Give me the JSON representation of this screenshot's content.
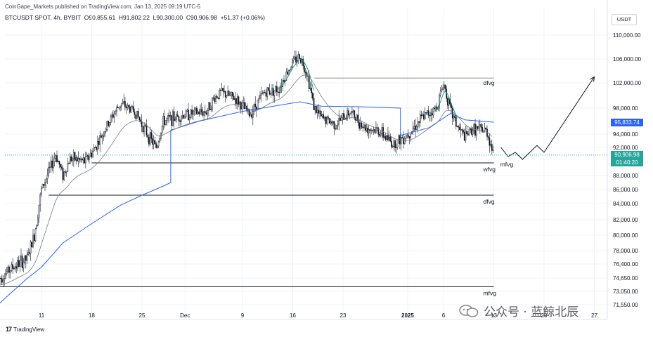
{
  "header": {
    "publisher_text": "CoinGape_Markets published on TradingView.com, Jan 13, 2025 09:19 UTC-5",
    "symbol": "BTCUSDT SPOT, 4h, BYBIT",
    "open": "O90,855.61",
    "high": "H91,802.22",
    "low": "L90,300.00",
    "close": "C90,906.98",
    "change": "+51.37 (+0.06%)",
    "currency": "USDT"
  },
  "footer": {
    "brand": "TradingView"
  },
  "watermark": {
    "text": "公众号 · 蓝鲸北辰"
  },
  "price_tags": {
    "sma_value": "95,833.74",
    "last_price": "90,906.98",
    "countdown": "01:40:20"
  },
  "colors": {
    "up": "#131722",
    "down": "#131722",
    "sma_blue": "#2962ff",
    "ema_gray": "#787b86",
    "green_line": "#089981",
    "level_black": "#131722",
    "last_price_green": "#26a69a",
    "sma_tag_blue": "#2962ff"
  },
  "chart_data": {
    "type": "candlestick",
    "title": "BTCUSDT SPOT, 4h, BYBIT",
    "y_axis": {
      "ticks": [
        110000,
        106000,
        102000,
        98000,
        94000,
        92000,
        88000,
        86000,
        84000,
        82000,
        80000,
        78000,
        76400,
        74650,
        73050,
        71550
      ],
      "tick_labels": [
        "110,000.00",
        "106,000.00",
        "102,000.00",
        "98,000.00",
        "94,000.00",
        "92,000.00",
        "88,000.00",
        "86,000.00",
        "84,000.00",
        "82,000.00",
        "80,000.00",
        "78,000.00",
        "76,400.00",
        "74,650.00",
        "73,050.00",
        "71,550.00"
      ]
    },
    "x_axis": {
      "ticks": [
        "11",
        "18",
        "25",
        "Dec",
        "9",
        "16",
        "23",
        "2025",
        "6",
        "13",
        "20",
        "27"
      ]
    },
    "price_path": [
      [
        "2024-11-05",
        74500
      ],
      [
        "2024-11-07",
        76000
      ],
      [
        "2024-11-09",
        77000
      ],
      [
        "2024-11-10",
        80000
      ],
      [
        "2024-11-11",
        86000
      ],
      [
        "2024-11-12",
        88500
      ],
      [
        "2024-11-13",
        91000
      ],
      [
        "2024-11-14",
        88000
      ],
      [
        "2024-11-15",
        90500
      ],
      [
        "2024-11-17",
        90000
      ],
      [
        "2024-11-18",
        91200
      ],
      [
        "2024-11-19",
        93000
      ],
      [
        "2024-11-21",
        97000
      ],
      [
        "2024-11-22",
        98700
      ],
      [
        "2024-11-24",
        97500
      ],
      [
        "2024-11-26",
        93500
      ],
      [
        "2024-11-27",
        92000
      ],
      [
        "2024-11-28",
        96000
      ],
      [
        "2024-12-01",
        97000
      ],
      [
        "2024-12-04",
        97500
      ],
      [
        "2024-12-05",
        99500
      ],
      [
        "2024-12-06",
        100500
      ],
      [
        "2024-12-08",
        99500
      ],
      [
        "2024-12-10",
        97000
      ],
      [
        "2024-12-12",
        100500
      ],
      [
        "2024-12-14",
        101000
      ],
      [
        "2024-12-16",
        105500
      ],
      [
        "2024-12-17",
        106500
      ],
      [
        "2024-12-18",
        103500
      ],
      [
        "2024-12-19",
        98000
      ],
      [
        "2024-12-20",
        96500
      ],
      [
        "2024-12-22",
        95500
      ],
      [
        "2024-12-24",
        97500
      ],
      [
        "2024-12-26",
        95000
      ],
      [
        "2024-12-28",
        94500
      ],
      [
        "2024-12-30",
        92500
      ],
      [
        "2025-01-01",
        94000
      ],
      [
        "2025-01-03",
        96500
      ],
      [
        "2025-01-05",
        98000
      ],
      [
        "2025-01-06",
        102000
      ],
      [
        "2025-01-07",
        97500
      ],
      [
        "2025-01-08",
        95000
      ],
      [
        "2025-01-09",
        93500
      ],
      [
        "2025-01-10",
        94800
      ],
      [
        "2025-01-12",
        94500
      ],
      [
        "2025-01-13",
        90906.98
      ]
    ],
    "sma_blue": [
      [
        "2024-11-05",
        71600
      ],
      [
        "2024-11-09",
        74600
      ],
      [
        "2024-11-11",
        76000
      ],
      [
        "2024-11-14",
        79000
      ],
      [
        "2024-11-18",
        81500
      ],
      [
        "2024-11-22",
        83800
      ],
      [
        "2024-11-25",
        85200
      ],
      [
        "2024-11-28",
        86500
      ],
      [
        "2024-11-29",
        87000
      ],
      [
        "2024-11-29",
        94600
      ],
      [
        "2024-12-03",
        96000
      ],
      [
        "2024-12-09",
        97500
      ],
      [
        "2024-12-17",
        99000
      ],
      [
        "2024-12-20",
        98300
      ],
      [
        "2024-12-26",
        98200
      ],
      [
        "2024-12-31",
        98000
      ],
      [
        "2024-12-31",
        93800
      ],
      [
        "2025-01-04",
        95000
      ],
      [
        "2025-01-07",
        97200
      ],
      [
        "2025-01-09",
        96200
      ],
      [
        "2025-01-13",
        95833.74
      ]
    ],
    "horizontal_levels": [
      {
        "label": "dfvg",
        "value": 102800,
        "from": "2024-12-19",
        "to": "2025-01-13"
      },
      {
        "label": "wfvg",
        "value": 89800,
        "from": "2024-11-18",
        "to": "2025-01-13"
      },
      {
        "label": "dfvg",
        "value": 85200,
        "from": "2024-11-12",
        "to": "2025-01-13"
      },
      {
        "label": "mfvg",
        "value": 73600,
        "from": "2024-11-05",
        "to": "2025-01-13"
      }
    ],
    "extra_labels": [
      {
        "label": "mfvg",
        "date": "2025-01-14",
        "value": 90400
      }
    ],
    "projection": [
      [
        "2025-01-14",
        92000
      ],
      [
        "2025-01-15",
        90700
      ],
      [
        "2025-01-16",
        91300
      ],
      [
        "2025-01-17",
        90300
      ],
      [
        "2025-01-19",
        92300
      ],
      [
        "2025-01-20",
        91300
      ],
      [
        "2025-01-27",
        103000
      ]
    ]
  }
}
